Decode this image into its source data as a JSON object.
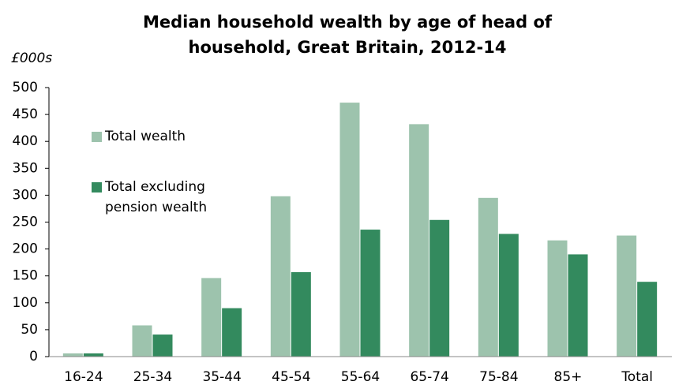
{
  "chart_data": {
    "type": "bar",
    "title": "Median household wealth  by age of head of household, Great Britain, 2012-14",
    "y_label": "£000s",
    "categories": [
      "16-24",
      "25-34",
      "35-44",
      "45-54",
      "55-64",
      "65-74",
      "75-84",
      "85+",
      "Total"
    ],
    "series": [
      {
        "name": "Total wealth",
        "color": "#9dc3ad",
        "values": [
          6,
          58,
          146,
          298,
          472,
          432,
          295,
          216,
          225
        ]
      },
      {
        "name": "Total excluding pension wealth",
        "color": "#338a5e",
        "values": [
          6,
          41,
          90,
          157,
          236,
          254,
          228,
          190,
          139
        ]
      }
    ],
    "ylim": [
      0,
      500
    ],
    "yticks": [
      0,
      50,
      100,
      150,
      200,
      250,
      300,
      350,
      400,
      450,
      500
    ],
    "grid": false
  }
}
